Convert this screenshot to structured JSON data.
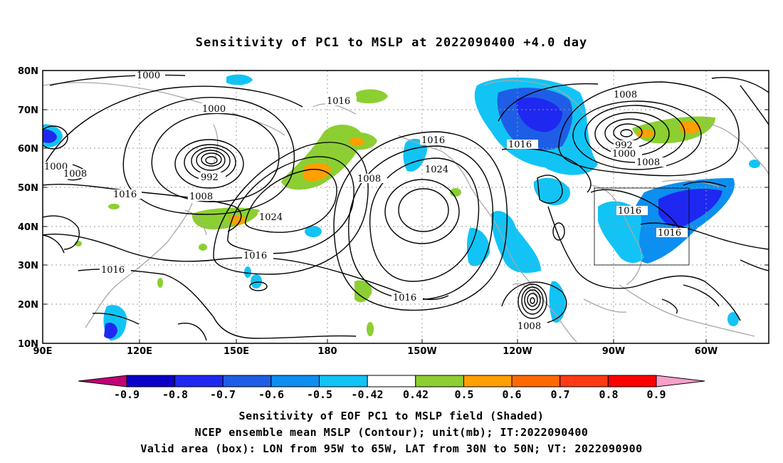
{
  "title": "Sensitivity of PC1 to MSLP at 2022090400 +4.0 day",
  "lat_labels": [
    "80N",
    "70N",
    "60N",
    "50N",
    "40N",
    "30N",
    "20N",
    "10N"
  ],
  "lon_labels": [
    "90E",
    "120E",
    "150E",
    "180",
    "150W",
    "120W",
    "90W",
    "60W"
  ],
  "contour_labels": [
    "1000",
    "1000",
    "1000",
    "1008",
    "992",
    "1008",
    "1016",
    "1016",
    "1024",
    "1016",
    "1016",
    "1008",
    "1016",
    "1024",
    "1016",
    "1008",
    "1016",
    "1008",
    "992",
    "1000",
    "1008",
    "1016",
    "1016",
    "1008"
  ],
  "colorbar": {
    "labels": [
      "-0.9",
      "-0.8",
      "-0.7",
      "-0.6",
      "-0.5",
      "-0.42",
      "0.42",
      "0.5",
      "0.6",
      "0.7",
      "0.8",
      "0.9"
    ],
    "colors": [
      "#0a00c8",
      "#1f28f0",
      "#1e5ee6",
      "#0c8ff0",
      "#11c4f5",
      "#ffffff",
      "#8ccf32",
      "#ff9f00",
      "#ff6a00",
      "#ff3a14",
      "#ff0000"
    ],
    "low_color": "#c20078",
    "high_color": "#f7a0c8"
  },
  "captions": [
    "Sensitivity of EOF PC1 to MSLP field (Shaded)",
    "NCEP ensemble mean MSLP (Contour); unit(mb); IT:2022090400",
    "Valid area (box): LON from 95W to 65W, LAT from 30N to 50N; VT: 2022090900"
  ]
}
